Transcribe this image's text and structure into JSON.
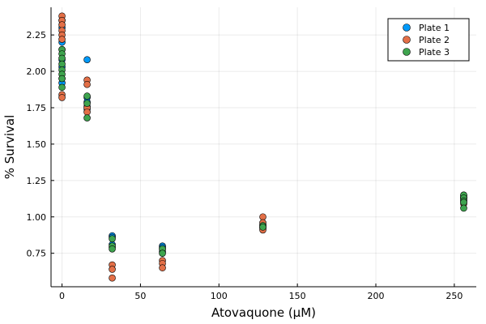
{
  "chart_data": {
    "type": "scatter",
    "title": "",
    "xlabel": "Atovaquone (μM)",
    "ylabel": "% Survival",
    "xlim": [
      -7,
      264
    ],
    "ylim": [
      0.52,
      2.44
    ],
    "x_ticks": [
      0,
      50,
      100,
      150,
      200,
      250
    ],
    "x_tick_labels": [
      "0",
      "50",
      "100",
      "150",
      "200",
      "250"
    ],
    "y_ticks": [
      0.75,
      1.0,
      1.25,
      1.5,
      1.75,
      2.0,
      2.25
    ],
    "y_tick_labels": [
      "0.75",
      "1.00",
      "1.25",
      "1.50",
      "1.75",
      "2.00",
      "2.25"
    ],
    "grid": true,
    "legend_position": "top-right",
    "series": [
      {
        "name": "Plate 1",
        "color": "#009AFA",
        "points": [
          [
            0,
            2.35
          ],
          [
            0,
            2.3
          ],
          [
            0,
            2.2
          ],
          [
            0,
            2.15
          ],
          [
            0,
            2.08
          ],
          [
            0,
            2.03
          ],
          [
            0,
            1.95
          ],
          [
            0,
            1.92
          ],
          [
            16,
            2.08
          ],
          [
            16,
            1.82
          ],
          [
            16,
            1.79
          ],
          [
            16,
            1.76
          ],
          [
            16,
            1.74
          ],
          [
            32,
            0.87
          ],
          [
            32,
            0.86
          ],
          [
            32,
            0.81
          ],
          [
            32,
            0.79
          ],
          [
            64,
            0.8
          ],
          [
            64,
            0.79
          ],
          [
            64,
            0.78
          ],
          [
            64,
            0.76
          ],
          [
            128,
            0.95
          ],
          [
            128,
            0.94
          ],
          [
            128,
            0.93
          ],
          [
            128,
            0.92
          ],
          [
            256,
            1.14
          ],
          [
            256,
            1.13
          ],
          [
            256,
            1.12
          ],
          [
            256,
            1.11
          ]
        ]
      },
      {
        "name": "Plate 2",
        "color": "#E36F47",
        "points": [
          [
            0,
            2.38
          ],
          [
            0,
            2.35
          ],
          [
            0,
            2.32
          ],
          [
            0,
            2.28
          ],
          [
            0,
            2.25
          ],
          [
            0,
            2.22
          ],
          [
            0,
            1.84
          ],
          [
            0,
            1.82
          ],
          [
            16,
            1.94
          ],
          [
            16,
            1.91
          ],
          [
            16,
            1.75
          ],
          [
            16,
            1.72
          ],
          [
            32,
            0.67
          ],
          [
            32,
            0.64
          ],
          [
            32,
            0.58
          ],
          [
            64,
            0.7
          ],
          [
            64,
            0.68
          ],
          [
            64,
            0.65
          ],
          [
            128,
            1.0
          ],
          [
            128,
            0.96
          ],
          [
            128,
            0.93
          ],
          [
            128,
            0.91
          ],
          [
            256,
            1.15
          ],
          [
            256,
            1.13
          ],
          [
            256,
            1.1
          ],
          [
            256,
            1.09
          ]
        ]
      },
      {
        "name": "Plate 3",
        "color": "#3EA44E",
        "points": [
          [
            0,
            2.15
          ],
          [
            0,
            2.12
          ],
          [
            0,
            2.09
          ],
          [
            0,
            2.05
          ],
          [
            0,
            2.01
          ],
          [
            0,
            1.98
          ],
          [
            0,
            1.95
          ],
          [
            0,
            1.89
          ],
          [
            16,
            1.83
          ],
          [
            16,
            1.78
          ],
          [
            16,
            1.68
          ],
          [
            32,
            0.85
          ],
          [
            32,
            0.8
          ],
          [
            32,
            0.78
          ],
          [
            64,
            0.78
          ],
          [
            64,
            0.75
          ],
          [
            128,
            0.94
          ],
          [
            128,
            0.93
          ],
          [
            256,
            1.15
          ],
          [
            256,
            1.13
          ],
          [
            256,
            1.11
          ],
          [
            256,
            1.1
          ],
          [
            256,
            1.06
          ]
        ]
      }
    ]
  }
}
